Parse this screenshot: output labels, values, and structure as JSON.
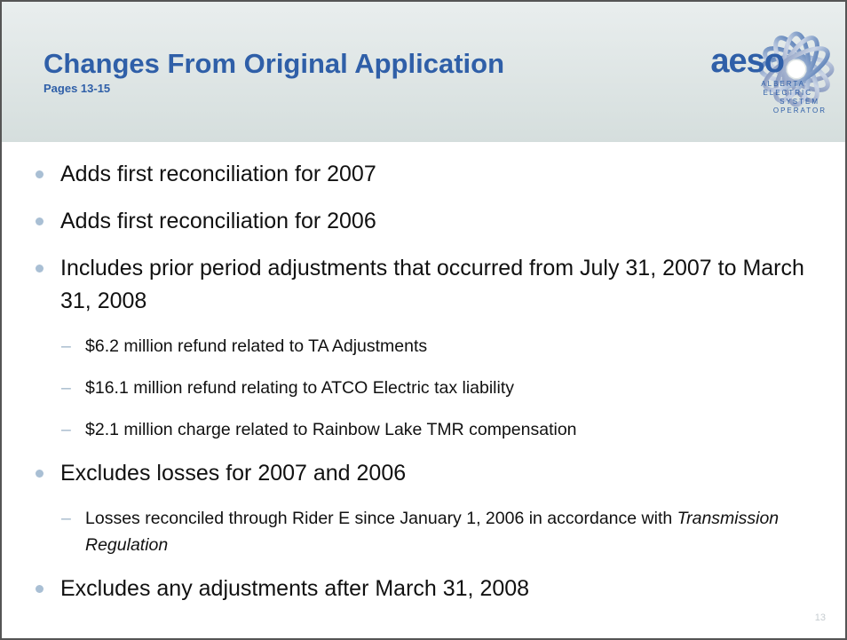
{
  "header": {
    "title": "Changes From Original Application",
    "subtitle": "Pages 13-15"
  },
  "logo": {
    "name": "aeso",
    "lines": [
      "ALBERTA",
      "ELECTRIC",
      "SYSTEM",
      "OPERATOR"
    ]
  },
  "bullets": [
    {
      "text": "Adds first reconciliation for 2007"
    },
    {
      "text": "Adds first reconciliation for 2006"
    },
    {
      "text": "Includes prior period adjustments that occurred from July 31, 2007 to March 31, 2008",
      "sub": [
        {
          "parts": [
            {
              "text": "$6.2 million refund related to TA Adjustments"
            }
          ]
        },
        {
          "parts": [
            {
              "text": "$16.1 million refund relating to ATCO Electric tax liability"
            }
          ]
        },
        {
          "parts": [
            {
              "text": "$2.1 million charge related to Rainbow Lake TMR compensation"
            }
          ]
        }
      ]
    },
    {
      "text": "Excludes losses for 2007 and 2006",
      "sub": [
        {
          "parts": [
            {
              "text": "Losses reconciled through Rider E since January 1, 2006 in accordance with "
            },
            {
              "text": "Transmission Regulation",
              "italic": true
            }
          ]
        }
      ]
    },
    {
      "text": "Excludes any adjustments after March 31, 2008"
    }
  ],
  "page_number": "13"
}
